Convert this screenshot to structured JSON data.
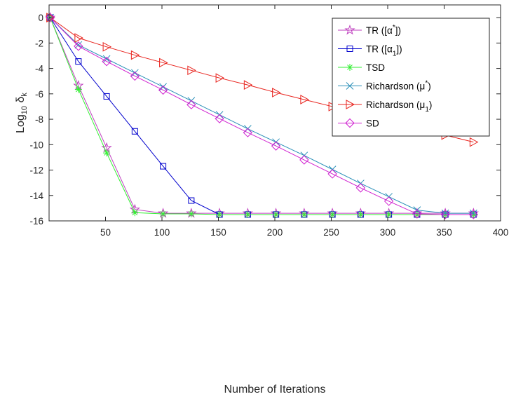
{
  "chart_data": {
    "type": "line",
    "title": "",
    "xlabel": "Number of Iterations",
    "ylabel": {
      "prefix": "Log",
      "sub": "10",
      "mid": " δ",
      "sub2": "k"
    },
    "xlim": [
      0,
      400
    ],
    "ylim": [
      -16,
      1
    ],
    "xticks": [
      50,
      100,
      150,
      200,
      250,
      300,
      350,
      400
    ],
    "yticks": [
      0,
      -2,
      -4,
      -6,
      -8,
      -10,
      -12,
      -14,
      -16
    ],
    "grid": false,
    "legend_position": "top-right",
    "x": [
      1,
      26,
      51,
      76,
      101,
      126,
      151,
      176,
      201,
      226,
      251,
      276,
      301,
      326,
      351,
      376
    ],
    "series": [
      {
        "name": "TR ([α*])",
        "legend": {
          "base": "TR ([α",
          "sup": "*",
          "end": "])"
        },
        "color": "#bf40bf",
        "marker": "star",
        "values": [
          0,
          -5.35,
          -10.25,
          -15.1,
          -15.4,
          -15.4,
          -15.4,
          -15.4,
          -15.4,
          -15.4,
          -15.4,
          -15.4,
          -15.4,
          -15.4,
          -15.4,
          -15.4
        ]
      },
      {
        "name": "TR ([α1])",
        "legend": {
          "base": "TR ([α",
          "sub": "1",
          "end": "])"
        },
        "color": "#0000cd",
        "marker": "square",
        "values": [
          0,
          -3.45,
          -6.2,
          -8.95,
          -11.7,
          -14.4,
          -15.5,
          -15.5,
          -15.5,
          -15.5,
          -15.5,
          -15.5,
          -15.5,
          -15.5,
          -15.5,
          -15.5
        ]
      },
      {
        "name": "TSD",
        "legend": {
          "base": "TSD"
        },
        "color": "#33ee33",
        "marker": "asterisk",
        "values": [
          0,
          -5.65,
          -10.65,
          -15.35,
          -15.45,
          -15.45,
          -15.5,
          -15.5,
          -15.5,
          -15.5,
          -15.5,
          -15.5,
          -15.5,
          -15.5,
          -15.5,
          -15.5
        ]
      },
      {
        "name": "Richardson (μ*)",
        "legend": {
          "base": "Richardson (μ",
          "sup": "*",
          "end": ")"
        },
        "color": "#2a8fb8",
        "marker": "x",
        "values": [
          0,
          -2.15,
          -3.25,
          -4.35,
          -5.45,
          -6.55,
          -7.65,
          -8.75,
          -9.8,
          -10.85,
          -11.95,
          -13.05,
          -14.1,
          -15.15,
          -15.4,
          -15.4
        ]
      },
      {
        "name": "Richardson (μ1)",
        "legend": {
          "base": "Richardson (μ",
          "sub": "1",
          "end": ")"
        },
        "color": "#e8231d",
        "marker": "triangle-right",
        "values": [
          0,
          -1.6,
          -2.3,
          -2.95,
          -3.55,
          -4.15,
          -4.75,
          -5.3,
          -5.9,
          -6.45,
          -7.0,
          -7.6,
          -8.15,
          -8.7,
          -9.25,
          -9.8
        ]
      },
      {
        "name": "SD",
        "legend": {
          "base": "SD"
        },
        "color": "#d020d0",
        "marker": "diamond",
        "values": [
          0,
          -2.25,
          -3.45,
          -4.6,
          -5.7,
          -6.85,
          -7.95,
          -9.05,
          -10.1,
          -11.2,
          -12.3,
          -13.4,
          -14.45,
          -15.45,
          -15.5,
          -15.5
        ]
      }
    ]
  }
}
